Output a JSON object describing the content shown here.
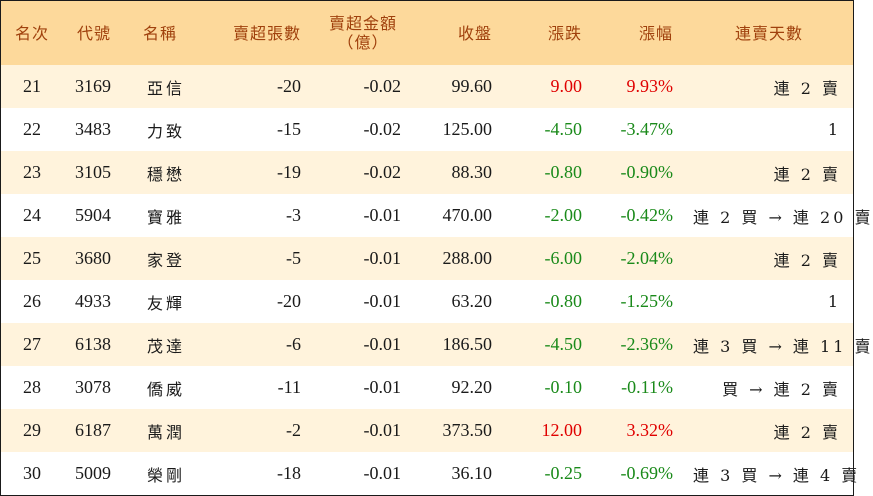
{
  "table": {
    "headers": {
      "rank": "名次",
      "code": "代號",
      "name": "名稱",
      "net_sell_lots": "賣超張數",
      "net_sell_amount_line1": "賣超金額",
      "net_sell_amount_line2": "（億）",
      "close": "收盤",
      "change": "漲跌",
      "change_pct": "漲幅",
      "consecutive_days": "連賣天數"
    },
    "colors": {
      "header_bg": "#fdd99b",
      "header_text": "#a0410d",
      "stripe_bg": "#fff3dc",
      "up": "#e00000",
      "down": "#1a8a1a"
    },
    "rows": [
      {
        "rank": "21",
        "code": "3169",
        "name": "亞信",
        "lots": "-20",
        "amount": "-0.02",
        "close": "99.60",
        "change": "9.00",
        "pct": "9.93%",
        "days": "連 2 賣",
        "dir": "up"
      },
      {
        "rank": "22",
        "code": "3483",
        "name": "力致",
        "lots": "-15",
        "amount": "-0.02",
        "close": "125.00",
        "change": "-4.50",
        "pct": "-3.47%",
        "days": "1",
        "dir": "down"
      },
      {
        "rank": "23",
        "code": "3105",
        "name": "穩懋",
        "lots": "-19",
        "amount": "-0.02",
        "close": "88.30",
        "change": "-0.80",
        "pct": "-0.90%",
        "days": "連 2 賣",
        "dir": "down"
      },
      {
        "rank": "24",
        "code": "5904",
        "name": "寶雅",
        "lots": "-3",
        "amount": "-0.01",
        "close": "470.00",
        "change": "-2.00",
        "pct": "-0.42%",
        "days": "連 2 買 → 連 20 賣",
        "dir": "down"
      },
      {
        "rank": "25",
        "code": "3680",
        "name": "家登",
        "lots": "-5",
        "amount": "-0.01",
        "close": "288.00",
        "change": "-6.00",
        "pct": "-2.04%",
        "days": "連 2 賣",
        "dir": "down"
      },
      {
        "rank": "26",
        "code": "4933",
        "name": "友輝",
        "lots": "-20",
        "amount": "-0.01",
        "close": "63.20",
        "change": "-0.80",
        "pct": "-1.25%",
        "days": "1",
        "dir": "down"
      },
      {
        "rank": "27",
        "code": "6138",
        "name": "茂達",
        "lots": "-6",
        "amount": "-0.01",
        "close": "186.50",
        "change": "-4.50",
        "pct": "-2.36%",
        "days": "連 3 買 → 連 11 賣",
        "dir": "down"
      },
      {
        "rank": "28",
        "code": "3078",
        "name": "僑威",
        "lots": "-11",
        "amount": "-0.01",
        "close": "92.20",
        "change": "-0.10",
        "pct": "-0.11%",
        "days": "買 → 連 2 賣",
        "dir": "down"
      },
      {
        "rank": "29",
        "code": "6187",
        "name": "萬潤",
        "lots": "-2",
        "amount": "-0.01",
        "close": "373.50",
        "change": "12.00",
        "pct": "3.32%",
        "days": "連 2 賣",
        "dir": "up"
      },
      {
        "rank": "30",
        "code": "5009",
        "name": "榮剛",
        "lots": "-18",
        "amount": "-0.01",
        "close": "36.10",
        "change": "-0.25",
        "pct": "-0.69%",
        "days": "連 3 買 → 連 4 賣",
        "dir": "down"
      }
    ]
  }
}
